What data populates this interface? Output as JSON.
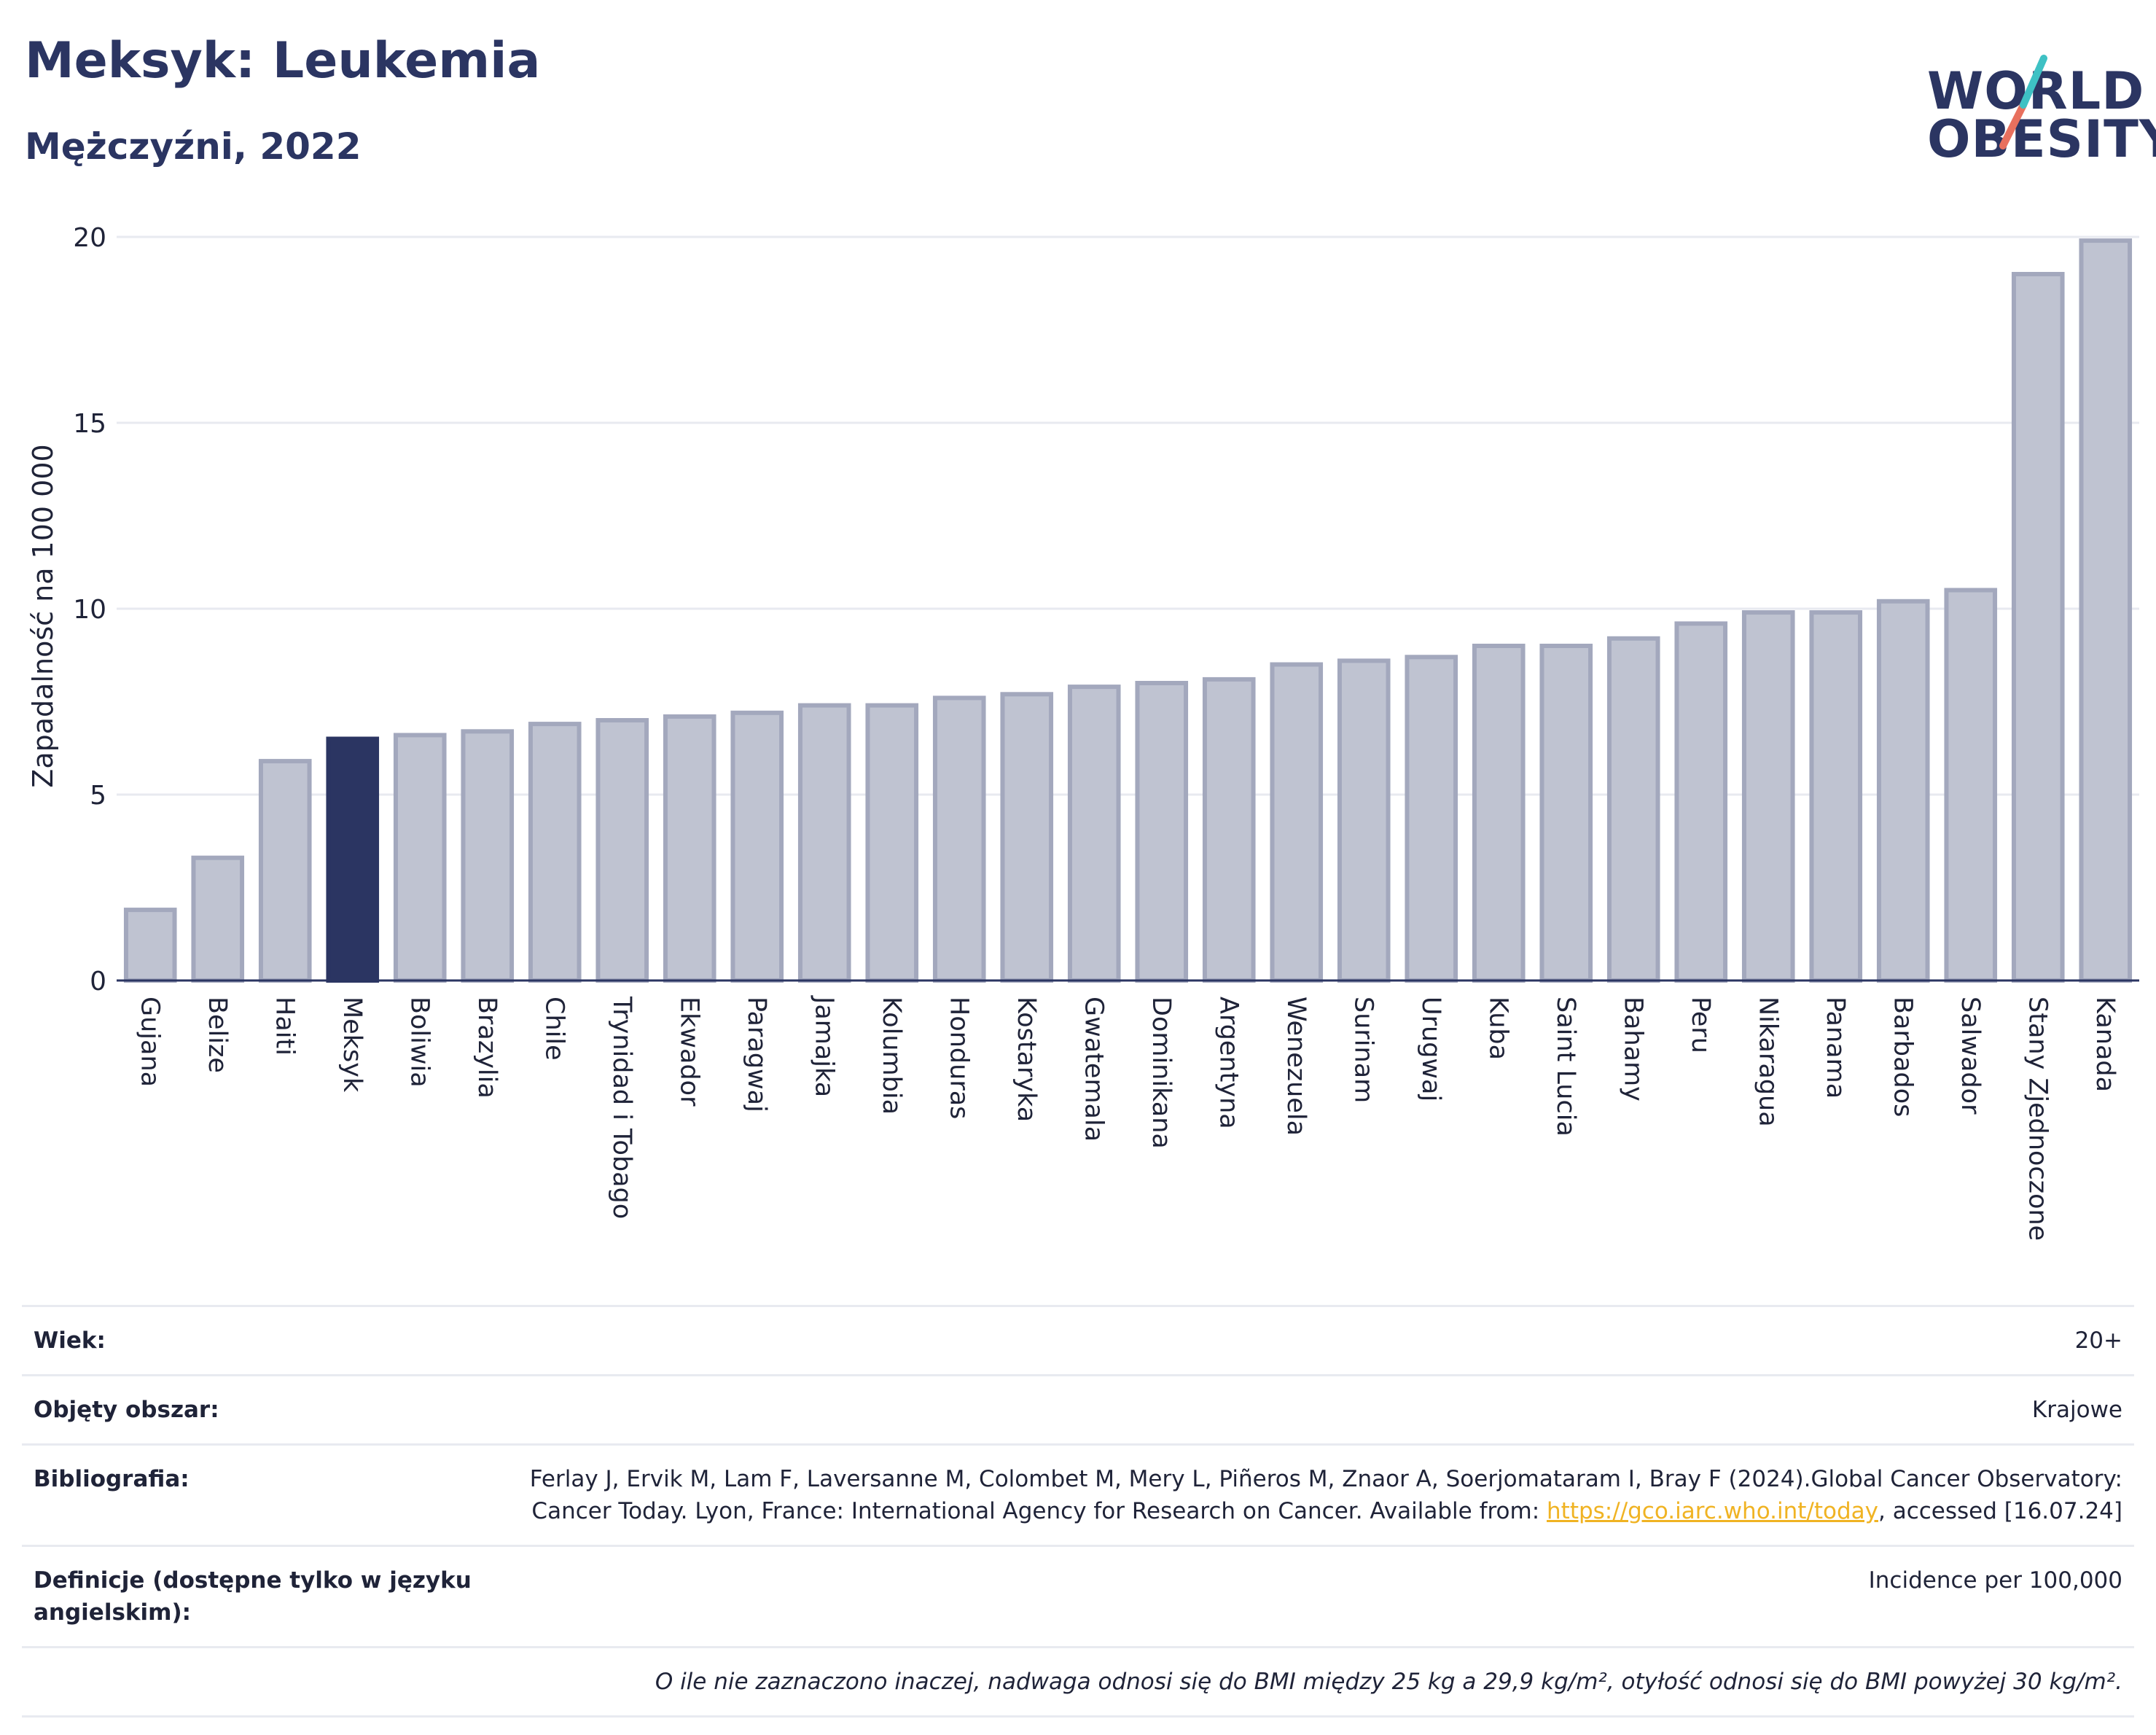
{
  "header": {
    "title": "Meksyk: Leukemia",
    "subtitle": "Mężczyźni, 2022",
    "logo_line1": "WORLD",
    "logo_line2": "OBESITY"
  },
  "colors": {
    "highlight": "#2b3562",
    "bar": "#bfc3d1",
    "bar_stroke": "#a3a8bd",
    "grid": "#e8eaf0",
    "logo_teal": "#3ec1c4",
    "logo_coral": "#e8705e"
  },
  "chart_data": {
    "type": "bar",
    "ylabel": "Zapadalność na 100 000",
    "ylim": [
      0,
      20
    ],
    "yticks": [
      0,
      5,
      10,
      15,
      20
    ],
    "highlight": "Meksyk",
    "grid": true,
    "categories": [
      "Gujana",
      "Belize",
      "Haiti",
      "Meksyk",
      "Boliwia",
      "Brazylia",
      "Chile",
      "Trynidad i Tobago",
      "Ekwador",
      "Paragwaj",
      "Jamajka",
      "Kolumbia",
      "Honduras",
      "Kostaryka",
      "Gwatemala",
      "Dominikana",
      "Argentyna",
      "Wenezuela",
      "Surinam",
      "Urugwaj",
      "Kuba",
      "Saint Lucia",
      "Bahamy",
      "Peru",
      "Nikaragua",
      "Panama",
      "Barbados",
      "Salwador",
      "Stany Zjednoczone",
      "Kanada"
    ],
    "values": [
      1.9,
      3.3,
      5.9,
      6.5,
      6.6,
      6.7,
      6.9,
      7.0,
      7.1,
      7.2,
      7.4,
      7.4,
      7.6,
      7.7,
      7.9,
      8.0,
      8.1,
      8.5,
      8.6,
      8.7,
      9.0,
      9.0,
      9.2,
      9.6,
      9.9,
      9.9,
      10.2,
      10.5,
      19.0,
      19.9
    ]
  },
  "meta": {
    "age_label": "Wiek:",
    "age_value": "20+",
    "area_label": "Objęty obszar:",
    "area_value": "Krajowe",
    "bib_label": "Bibliografia:",
    "bib_text": "Ferlay J, Ervik M, Lam F, Laversanne M, Colombet M, Mery L, Piñeros M, Znaor A, Soerjomataram I, Bray F (2024).Global Cancer Observatory: Cancer Today. Lyon, France: International Agency for Research on Cancer. Available from: ",
    "bib_link": "https://gco.iarc.who.int/today",
    "bib_suffix": ", accessed [16.07.24]",
    "def_label": "Definicje (dostępne tylko w języku angielskim):",
    "def_value": "Incidence per 100,000",
    "note": "O ile nie zaznaczono inaczej, nadwaga odnosi się do BMI między 25 kg a 29,9 kg/m², otyłość odnosi się do BMI powyżej 30 kg/m²."
  }
}
